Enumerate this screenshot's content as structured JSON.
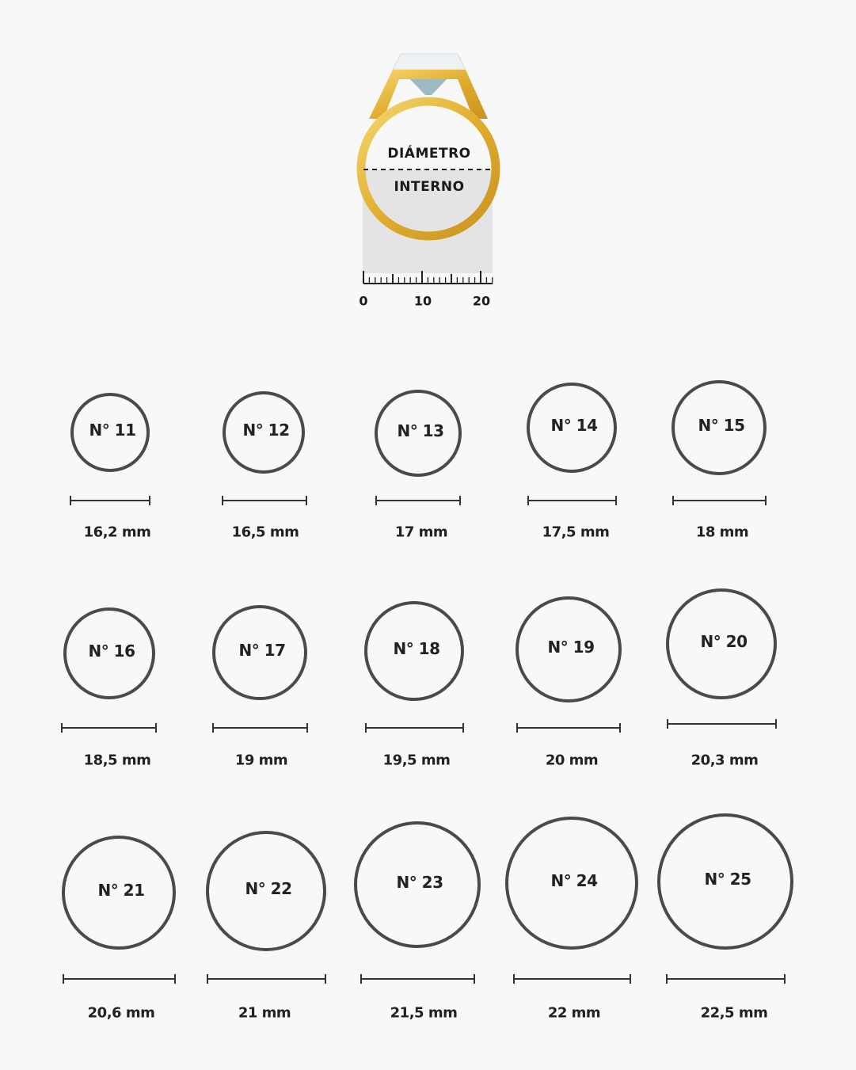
{
  "illustration": {
    "label_top": "DIÁMETRO",
    "label_bottom": "INTERNO",
    "ruler_ticks": [
      "0",
      "10",
      "20"
    ],
    "colors": {
      "gold": "#e2b33a",
      "gem": "#b8cfd6",
      "measure_area": "#e4e4e4"
    }
  },
  "rings": [
    {
      "label": "N° 11",
      "size": "16,2 mm",
      "mm": 16.2
    },
    {
      "label": "N° 12",
      "size": "16,5 mm",
      "mm": 16.5
    },
    {
      "label": "N° 13",
      "size": "17 mm",
      "mm": 17
    },
    {
      "label": "N° 14",
      "size": "17,5 mm",
      "mm": 17.5
    },
    {
      "label": "N° 15",
      "size": "18 mm",
      "mm": 18
    },
    {
      "label": "N° 16",
      "size": "18,5 mm",
      "mm": 18.5
    },
    {
      "label": "N° 17",
      "size": "19 mm",
      "mm": 19
    },
    {
      "label": "N° 18",
      "size": "19,5 mm",
      "mm": 19.5
    },
    {
      "label": "N° 19",
      "size": "20 mm",
      "mm": 20
    },
    {
      "label": "N° 20",
      "size": "20,3 mm",
      "mm": 20.3
    },
    {
      "label": "N° 21",
      "size": "20,6 mm",
      "mm": 20.6
    },
    {
      "label": "N° 22",
      "size": "21 mm",
      "mm": 21
    },
    {
      "label": "N° 23",
      "size": "21,5 mm",
      "mm": 21.5
    },
    {
      "label": "N° 24",
      "size": "22 mm",
      "mm": 22
    },
    {
      "label": "N° 25",
      "size": "22,5 mm",
      "mm": 22.5
    }
  ]
}
